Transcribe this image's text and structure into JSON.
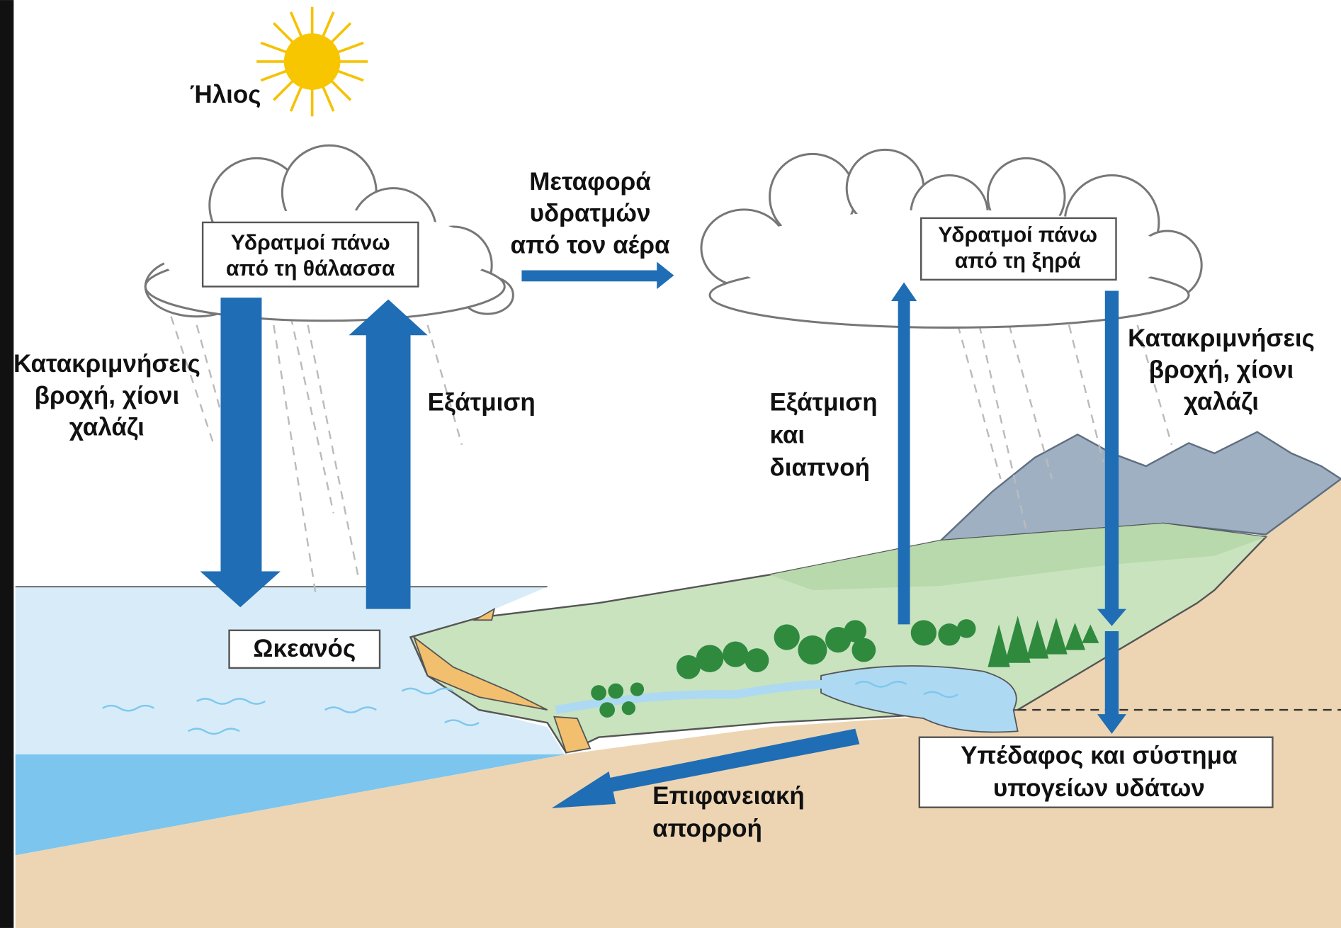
{
  "sun_label": "Ήλιος",
  "sea_vapor": {
    "lines": [
      "Υδρατμοί πάνω",
      "από τη θάλασσα"
    ]
  },
  "transport": {
    "lines": [
      "Μεταφορά",
      "υδρατμών",
      "από τον αέρα"
    ]
  },
  "land_vapor": {
    "lines": [
      "Υδρατμοί πάνω",
      "από τη ξηρά"
    ]
  },
  "precipitation_sea": {
    "lines": [
      "Κατακριμνήσεις",
      "βροχή, χίονι",
      "χαλάζι"
    ]
  },
  "evaporation_sea": "Εξάτμιση",
  "evapotranspiration": {
    "lines": [
      "Εξάτμιση",
      "και",
      "διαπνοή"
    ]
  },
  "precipitation_land": {
    "lines": [
      "Κατακριμνήσεις",
      "βροχή, χίονι",
      "χαλάζι"
    ]
  },
  "ocean": "Ωκεανός",
  "groundwater": {
    "lines": [
      "Υπέδαφος και σύστημα",
      "υπογείων υδάτων"
    ]
  },
  "runoff": {
    "lines": [
      "Επιφανειακή",
      "απορροή"
    ]
  }
}
